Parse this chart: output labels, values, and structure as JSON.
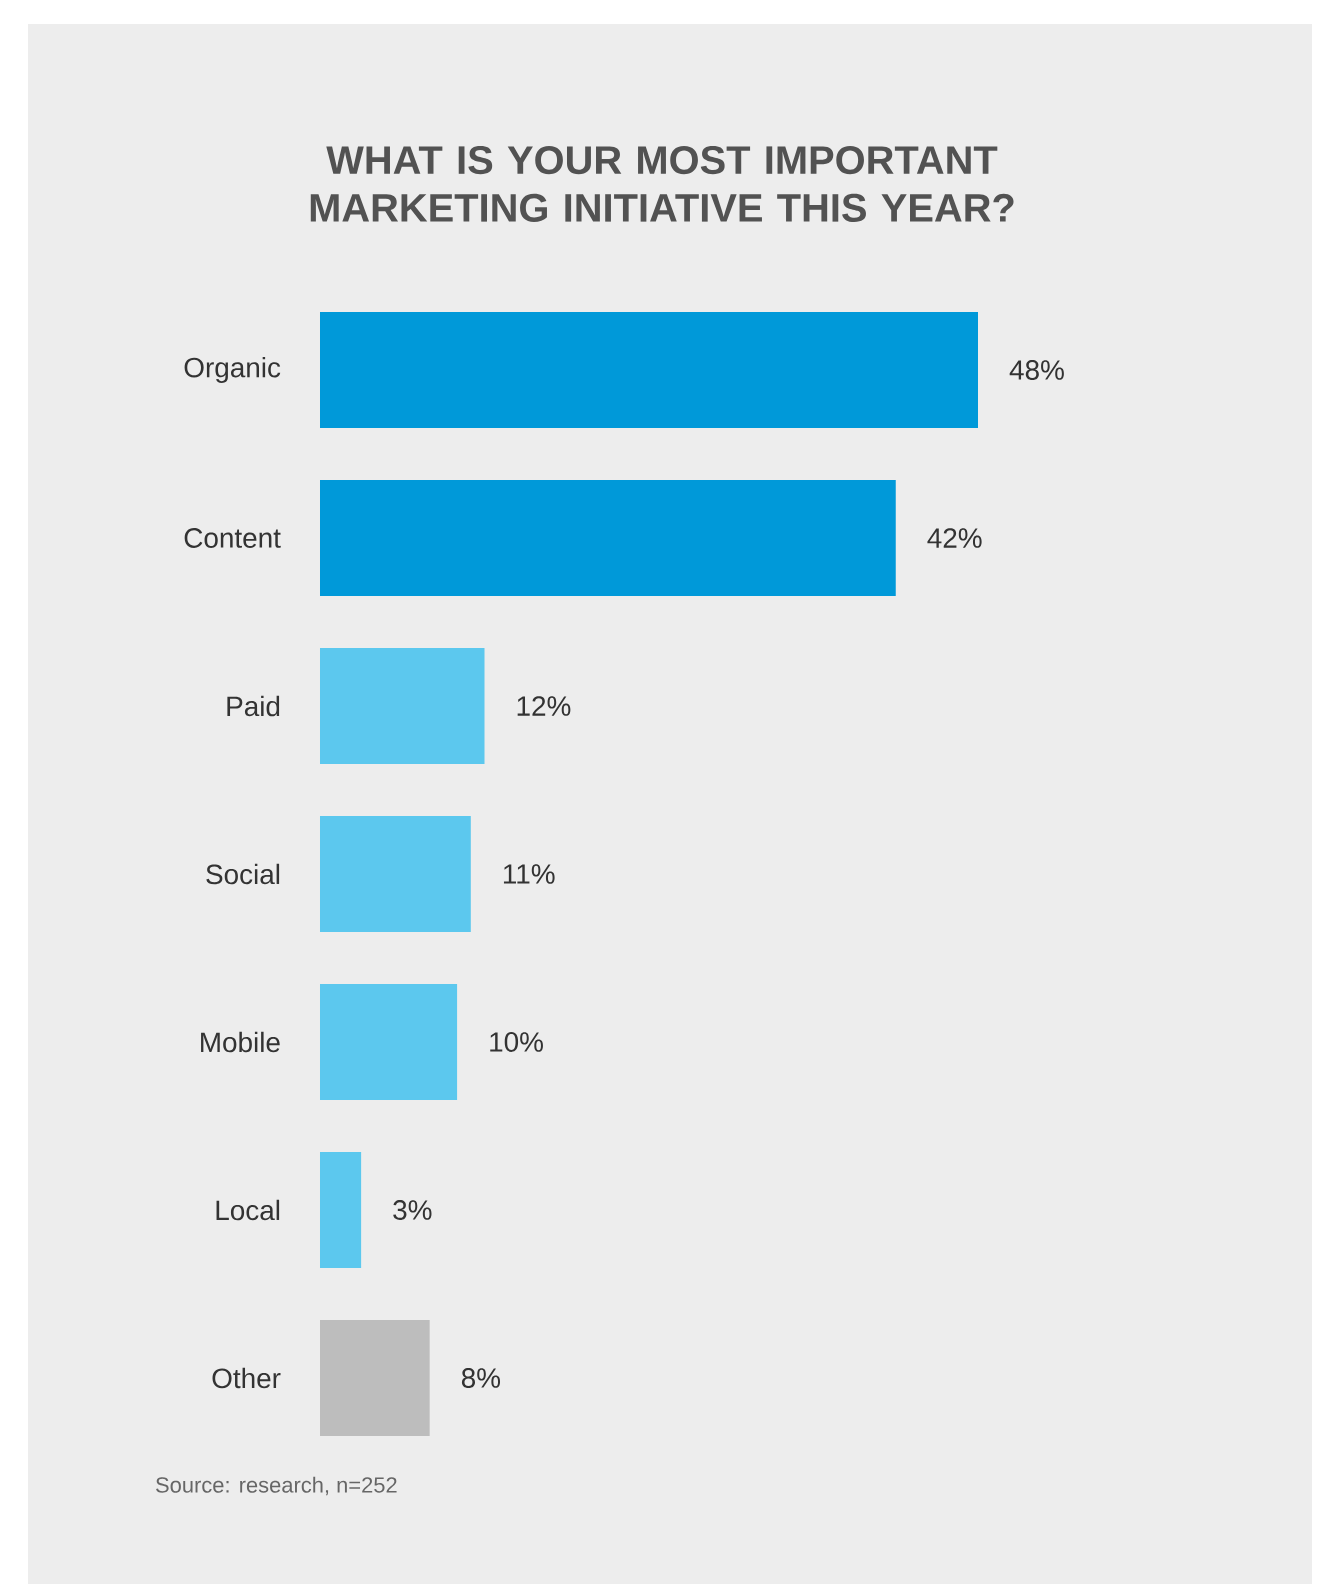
{
  "chart_data": {
    "type": "bar",
    "orientation": "horizontal",
    "title": "WHAT IS YOUR MOST IMPORTANT MARKETING INITIATIVE THIS YEAR?",
    "categories": [
      "Organic",
      "Content",
      "Paid",
      "Social",
      "Mobile",
      "Local",
      "Other"
    ],
    "values": [
      48,
      42,
      12,
      11,
      10,
      3,
      8
    ],
    "colors": [
      "#0099d9",
      "#0099d9",
      "#5cc8ee",
      "#5cc8ee",
      "#5cc8ee",
      "#5cc8ee",
      "#bdbdbd"
    ],
    "value_labels": [
      "48%",
      "42%",
      "12%",
      "11%",
      "10%",
      "3%",
      "8%"
    ],
    "annotations": [
      "Source: research, n=252"
    ]
  }
}
